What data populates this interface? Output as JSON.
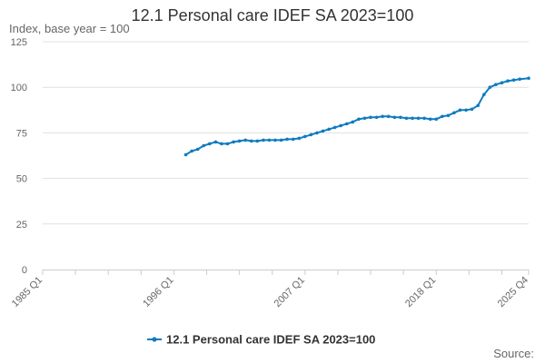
{
  "chart_data": {
    "type": "line",
    "title": "12.1 Personal care IDEF SA 2023=100",
    "ylabel": "Index, base year = 100",
    "xlabel": "",
    "source": "Source:",
    "ylim": [
      0,
      125
    ],
    "yticks": [
      0,
      25,
      50,
      75,
      100,
      125
    ],
    "x_range": [
      "1985 Q1",
      "2025 Q4"
    ],
    "xtick_labels": [
      "1985 Q1",
      "1996 Q1",
      "2007 Q1",
      "2018 Q1",
      "2025 Q4"
    ],
    "grid": true,
    "legend_position": "bottom",
    "color": "#0f7cbf",
    "series": [
      {
        "name": "12.1 Personal care IDEF SA 2023=100",
        "x": [
          "1997 Q1",
          "1997 Q3",
          "1998 Q1",
          "1998 Q3",
          "1999 Q1",
          "1999 Q3",
          "2000 Q1",
          "2000 Q3",
          "2001 Q1",
          "2001 Q3",
          "2002 Q1",
          "2002 Q3",
          "2003 Q1",
          "2003 Q3",
          "2004 Q1",
          "2004 Q3",
          "2005 Q1",
          "2005 Q3",
          "2006 Q1",
          "2006 Q3",
          "2007 Q1",
          "2007 Q3",
          "2008 Q1",
          "2008 Q3",
          "2009 Q1",
          "2009 Q3",
          "2010 Q1",
          "2010 Q3",
          "2011 Q1",
          "2011 Q3",
          "2012 Q1",
          "2012 Q3",
          "2013 Q1",
          "2013 Q3",
          "2014 Q1",
          "2014 Q3",
          "2015 Q1",
          "2015 Q3",
          "2016 Q1",
          "2016 Q3",
          "2017 Q1",
          "2017 Q3",
          "2018 Q1",
          "2018 Q3",
          "2019 Q1",
          "2019 Q3",
          "2020 Q1",
          "2020 Q3",
          "2021 Q1",
          "2021 Q3",
          "2022 Q1",
          "2022 Q3",
          "2023 Q1",
          "2023 Q3",
          "2024 Q1",
          "2024 Q3",
          "2025 Q1",
          "2025 Q4"
        ],
        "values": [
          63,
          65,
          66,
          68,
          69,
          70,
          69,
          69,
          70,
          70.5,
          71,
          70.5,
          70.5,
          71,
          71,
          71,
          71,
          71.5,
          71.5,
          72,
          73,
          74,
          75,
          76,
          77,
          78,
          79,
          80,
          81,
          82.5,
          83,
          83.5,
          83.5,
          84,
          84,
          83.5,
          83.5,
          83,
          83,
          83,
          83,
          82.5,
          82.5,
          84,
          84.5,
          86,
          87.5,
          87.5,
          88,
          90,
          96,
          100,
          101.5,
          102.5,
          103.5,
          104,
          104.5,
          105
        ]
      }
    ]
  }
}
